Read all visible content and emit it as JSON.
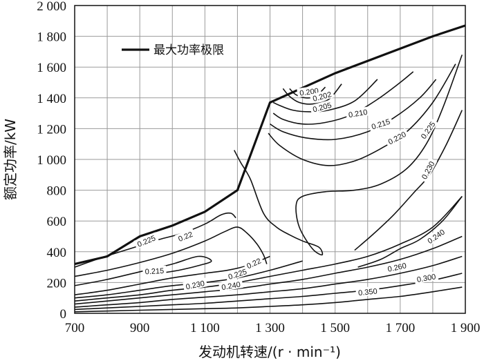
{
  "chart_data": {
    "type": "line",
    "title": "",
    "xlabel": "发动机转速/(r · min⁻¹)",
    "ylabel": "额定功率/kW",
    "xlim": [
      700,
      1900
    ],
    "ylim": [
      0,
      2000
    ],
    "x_ticks": [
      {
        "value": 700,
        "label": "700"
      },
      {
        "value": 900,
        "label": "900"
      },
      {
        "value": 1100,
        "label": "1 100"
      },
      {
        "value": 1300,
        "label": "1 300"
      },
      {
        "value": 1500,
        "label": "1 500"
      },
      {
        "value": 1700,
        "label": "1 700"
      },
      {
        "value": 1900,
        "label": "1 900"
      }
    ],
    "y_ticks": [
      {
        "value": 0,
        "label": "0"
      },
      {
        "value": 200,
        "label": "200"
      },
      {
        "value": 400,
        "label": "400"
      },
      {
        "value": 600,
        "label": "600"
      },
      {
        "value": 800,
        "label": "800"
      },
      {
        "value": 1000,
        "label": "1 000"
      },
      {
        "value": 1200,
        "label": "1 200"
      },
      {
        "value": 1400,
        "label": "1 400"
      },
      {
        "value": 1600,
        "label": "1 600"
      },
      {
        "value": 1800,
        "label": "1 800"
      },
      {
        "value": 2000,
        "label": "2 000"
      }
    ],
    "grid": true,
    "legend": {
      "position": "top-left",
      "entries": [
        "最大功率极限"
      ]
    },
    "power_limit": {
      "name": "最大功率极限",
      "x": [
        700,
        800,
        900,
        1000,
        1100,
        1200,
        1300,
        1500,
        1800,
        1900
      ],
      "y": [
        320,
        370,
        500,
        570,
        660,
        800,
        1370,
        1560,
        1800,
        1870
      ]
    },
    "contours": [
      {
        "label": "0.200",
        "label_at": [
          1420,
          1440
        ],
        "label_angle": -8,
        "x": [
          1360,
          1380,
          1410,
          1440,
          1470
        ],
        "y": [
          1460,
          1420,
          1400,
          1410,
          1470
        ]
      },
      {
        "label": "0.202",
        "label_at": [
          1460,
          1410
        ],
        "label_angle": -15,
        "x": [
          1340,
          1360,
          1390,
          1430,
          1480,
          1520
        ],
        "y": [
          1460,
          1410,
          1370,
          1360,
          1390,
          1490
        ]
      },
      {
        "label": "0.205",
        "label_at": [
          1460,
          1340
        ],
        "label_angle": -15,
        "x": [
          1310,
          1330,
          1370,
          1420,
          1480,
          1560,
          1630
        ],
        "y": [
          1370,
          1350,
          1320,
          1310,
          1320,
          1380,
          1520
        ]
      },
      {
        "label": "0.210",
        "label_at": [
          1570,
          1300
        ],
        "label_angle": -10,
        "x": [
          1310,
          1340,
          1400,
          1470,
          1550,
          1630,
          1700,
          1740
        ],
        "y": [
          1300,
          1260,
          1230,
          1240,
          1290,
          1390,
          1500,
          1570
        ]
      },
      {
        "label": "0.215",
        "label_at": [
          1640,
          1230
        ],
        "label_angle": -18,
        "x": [
          1300,
          1340,
          1410,
          1500,
          1600,
          1680,
          1760,
          1810
        ],
        "y": [
          1230,
          1180,
          1140,
          1130,
          1180,
          1270,
          1400,
          1520
        ]
      },
      {
        "label": "0.220",
        "label_at": [
          1690,
          1140
        ],
        "label_angle": -28,
        "x": [
          1295,
          1330,
          1400,
          1480,
          1560,
          1640,
          1720,
          1800,
          1870
        ],
        "y": [
          1170,
          1090,
          1000,
          960,
          990,
          1070,
          1180,
          1370,
          1620
        ]
      },
      {
        "label": "0.225",
        "label_at": [
          1785,
          1190
        ],
        "label_angle": -55,
        "x": [
          1190,
          1210,
          1240,
          1280,
          1320,
          1360,
          1400,
          1450,
          1460,
          1430,
          1390,
          1380,
          1400,
          1470,
          1560,
          1640,
          1720,
          1780,
          1830,
          1890
        ],
        "y": [
          1060,
          980,
          870,
          650,
          560,
          510,
          470,
          430,
          380,
          420,
          560,
          700,
          760,
          790,
          800,
          840,
          940,
          1100,
          1330,
          1680
        ]
      },
      {
        "label": "0.230",
        "label_at": [
          1785,
          930
        ],
        "label_angle": -62,
        "x": [
          1560,
          1620,
          1680,
          1740,
          1790,
          1840,
          1890
        ],
        "y": [
          410,
          520,
          640,
          780,
          900,
          1090,
          1320
        ]
      },
      {
        "label": "0.240",
        "label_at": [
          1810,
          500
        ],
        "label_angle": -35,
        "x": [
          1570,
          1640,
          1700,
          1760,
          1830,
          1890
        ],
        "y": [
          300,
          350,
          420,
          480,
          600,
          760
        ]
      },
      {
        "label": "0.225",
        "label_at": [
          920,
          470
        ],
        "label_angle": -22,
        "x": [
          700,
          780,
          840,
          900,
          960,
          1030,
          1100,
          1150,
          1180,
          1195
        ],
        "y": [
          300,
          360,
          400,
          440,
          480,
          520,
          580,
          640,
          650,
          620
        ]
      },
      {
        "label": "0.22",
        "label_at": [
          1040,
          500
        ],
        "label_angle": -22,
        "x": [
          700,
          800,
          900,
          1000,
          1100,
          1160,
          1200,
          1230,
          1260,
          1280,
          1290
        ],
        "y": [
          240,
          280,
          330,
          390,
          470,
          530,
          560,
          520,
          450,
          380,
          320
        ]
      },
      {
        "label": "0.215",
        "label_at": [
          945,
          275
        ],
        "label_angle": -3,
        "x": [
          700,
          800,
          900,
          1000,
          1080,
          1120,
          1080,
          1020,
          960
        ],
        "y": [
          180,
          220,
          270,
          320,
          370,
          340,
          310,
          280,
          260
        ]
      },
      {
        "label": "0.22",
        "label_at": [
          1250,
          325
        ],
        "label_angle": -25,
        "x": [
          700,
          800,
          900,
          1000,
          1100,
          1170,
          1230,
          1300
        ],
        "y": [
          120,
          150,
          190,
          230,
          260,
          280,
          310,
          370
        ]
      },
      {
        "label": "0.225",
        "label_at": [
          1200,
          255
        ],
        "label_angle": -18,
        "x": [
          700,
          800,
          900,
          1000,
          1100,
          1200,
          1300,
          1400
        ],
        "y": [
          100,
          120,
          150,
          180,
          200,
          230,
          280,
          340
        ]
      },
      {
        "label": "0.230",
        "label_at": [
          1070,
          185
        ],
        "label_angle": -12,
        "x": [
          700,
          800,
          900,
          1000,
          1100,
          1200,
          1300,
          1400,
          1500,
          1600,
          1700,
          1800,
          1890
        ],
        "y": [
          80,
          100,
          120,
          150,
          170,
          200,
          240,
          280,
          320,
          370,
          450,
          560,
          760
        ]
      },
      {
        "label": "0.240",
        "label_at": [
          1180,
          180
        ],
        "label_angle": -10,
        "x": [
          700,
          800,
          900,
          1000,
          1100,
          1200,
          1300,
          1400,
          1500,
          1600,
          1700,
          1800,
          1890
        ],
        "y": [
          60,
          80,
          100,
          120,
          140,
          160,
          190,
          220,
          260,
          300,
          350,
          420,
          500
        ]
      },
      {
        "label": "0.260",
        "label_at": [
          1690,
          300
        ],
        "label_angle": -12,
        "x": [
          700,
          800,
          900,
          1000,
          1100,
          1200,
          1300,
          1400,
          1500,
          1600,
          1700,
          1800,
          1890
        ],
        "y": [
          40,
          55,
          70,
          90,
          105,
          120,
          140,
          160,
          190,
          220,
          260,
          310,
          370
        ]
      },
      {
        "label": "0.300",
        "label_at": [
          1780,
          230
        ],
        "label_angle": -10,
        "x": [
          700,
          800,
          900,
          1000,
          1100,
          1200,
          1300,
          1400,
          1500,
          1600,
          1700,
          1800,
          1890
        ],
        "y": [
          25,
          35,
          45,
          55,
          65,
          80,
          95,
          110,
          130,
          150,
          180,
          215,
          260
        ]
      },
      {
        "label": "0.350",
        "label_at": [
          1600,
          140
        ],
        "label_angle": -6,
        "x": [
          700,
          800,
          900,
          1000,
          1100,
          1200,
          1300,
          1400,
          1500,
          1600,
          1700,
          1800,
          1890
        ],
        "y": [
          10,
          15,
          20,
          25,
          30,
          35,
          45,
          55,
          70,
          90,
          110,
          140,
          170
        ]
      }
    ]
  }
}
